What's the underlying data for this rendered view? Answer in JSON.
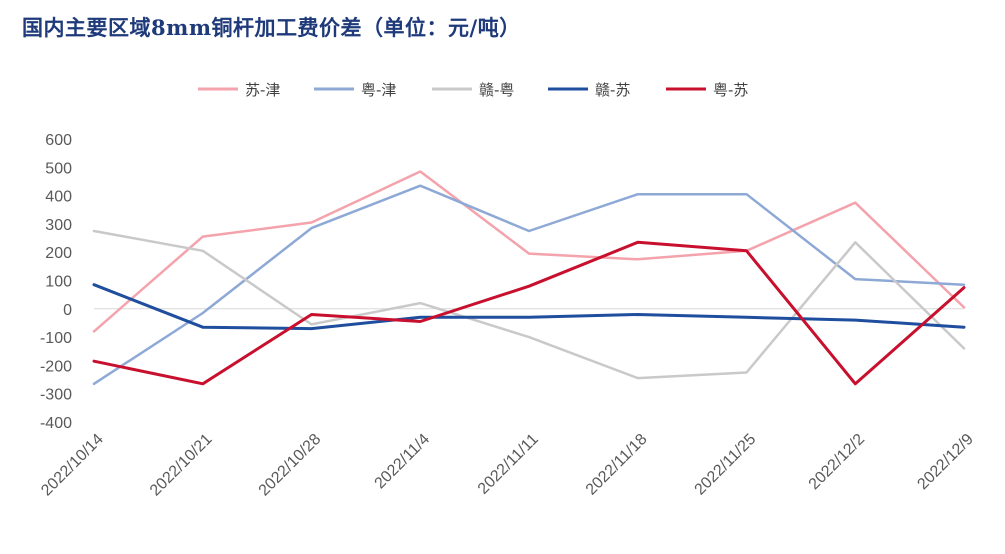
{
  "title": "国内主要区域8mm铜杆加工费价差（单位：元/吨）",
  "colors": {
    "title": "#1f3a7a",
    "axis_text": "#595959",
    "zero_line": "#d9d9d9"
  },
  "chart_data": {
    "type": "line",
    "title": "国内主要区域8mm铜杆加工费价差（单位：元/吨）",
    "xlabel": "",
    "ylabel": "",
    "categories": [
      "2022/10/14",
      "2022/10/21",
      "2022/10/28",
      "2022/11/4",
      "2022/11/11",
      "2022/11/18",
      "2022/11/25",
      "2022/12/2",
      "2022/12/9"
    ],
    "ylim": [
      -400,
      600
    ],
    "yticks": [
      -400,
      -300,
      -200,
      -100,
      0,
      100,
      200,
      300,
      400,
      500,
      600
    ],
    "grid": false,
    "legend_position": "top-center",
    "series": [
      {
        "name": "苏-津",
        "color": "#f4a3ac",
        "values": [
          -80,
          255,
          305,
          485,
          195,
          175,
          205,
          375,
          5
        ]
      },
      {
        "name": "粤-津",
        "color": "#8ea9d6",
        "values": [
          -265,
          -15,
          285,
          435,
          275,
          405,
          405,
          105,
          85
        ]
      },
      {
        "name": "赣-粤",
        "color": "#c9c9c9",
        "values": [
          275,
          205,
          -55,
          20,
          -100,
          -245,
          -225,
          235,
          -140
        ]
      },
      {
        "name": "赣-苏",
        "color": "#1f4e9e",
        "values": [
          85,
          -65,
          -70,
          -30,
          -30,
          -20,
          -30,
          -40,
          -65
        ]
      },
      {
        "name": "粤-苏",
        "color": "#c8102e",
        "values": [
          -185,
          -265,
          -20,
          -45,
          80,
          235,
          205,
          -265,
          75
        ]
      }
    ]
  }
}
